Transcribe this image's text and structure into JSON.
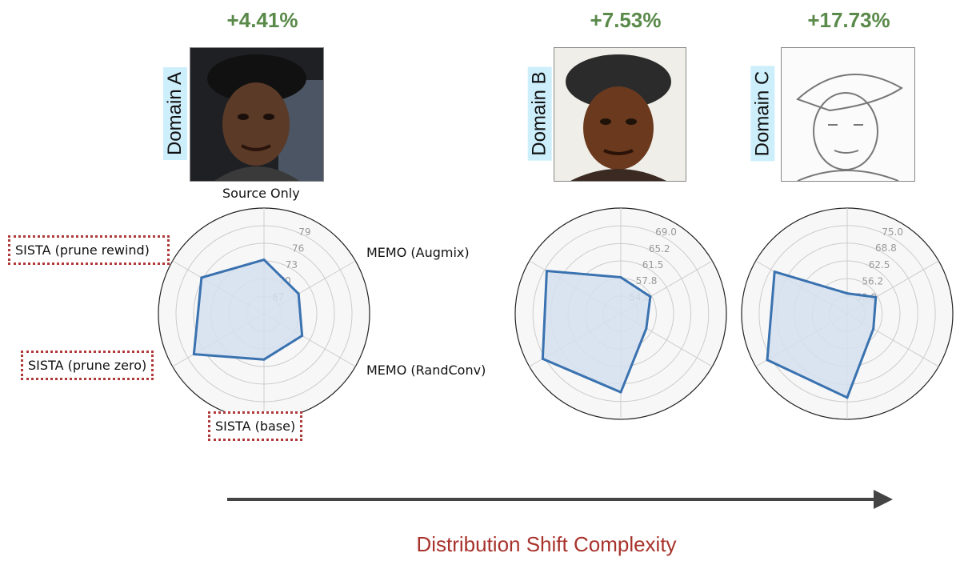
{
  "header": {
    "gains": [
      "+4.41%",
      "+7.53%",
      "+17.73%"
    ]
  },
  "domains": [
    {
      "label": "Domain A",
      "photo_icon": "face-photo-icon"
    },
    {
      "label": "Domain B",
      "photo_icon": "face-photo-icon"
    },
    {
      "label": "Domain C",
      "photo_icon": "face-sketch-icon"
    }
  ],
  "categories": [
    "Source Only",
    "MEMO (Augmix)",
    "MEMO (RandConv)",
    "SISTA (base)",
    "SISTA (prune zero)",
    "SISTA (prune rewind)"
  ],
  "colors": {
    "line": "#3a72b0",
    "fill": "#d5e1ee",
    "grid": "#cccccc",
    "gain": "#5a8a4a",
    "highlight": "#b03a3a",
    "arrow": "#444444",
    "axis_title": "#a8322c"
  },
  "chart_data": [
    {
      "type": "radar",
      "title": "Domain A",
      "categories": [
        "Source Only",
        "MEMO (Augmix)",
        "MEMO (RandConv)",
        "SISTA (base)",
        "SISTA (prune zero)",
        "SISTA (prune rewind)"
      ],
      "ticks": [
        "67",
        "70",
        "73",
        "76",
        "79"
      ],
      "tick_values": [
        67,
        70,
        73,
        76,
        79
      ],
      "range": [
        64,
        82
      ],
      "values": [
        73.2,
        70.8,
        71.5,
        71.8,
        77.8,
        76.3
      ]
    },
    {
      "type": "radar",
      "title": "Domain B",
      "categories": [
        "Source Only",
        "MEMO (Augmix)",
        "MEMO (RandConv)",
        "SISTA (base)",
        "SISTA (prune zero)",
        "SISTA (prune rewind)"
      ],
      "ticks": [
        "54.0",
        "57.8",
        "61.5",
        "65.2",
        "69.0"
      ],
      "tick_values": [
        54.0,
        57.8,
        61.5,
        65.2,
        69.0
      ],
      "range": [
        50.2,
        72.8
      ],
      "values": [
        58.0,
        57.5,
        56.5,
        67.0,
        69.5,
        68.5
      ]
    },
    {
      "type": "radar",
      "title": "Domain C",
      "categories": [
        "Source Only",
        "MEMO (Augmix)",
        "MEMO (RandConv)",
        "SISTA (base)",
        "SISTA (prune zero)",
        "SISTA (prune rewind)"
      ],
      "ticks": [
        "50.0",
        "56.2",
        "62.5",
        "68.8",
        "75.0"
      ],
      "tick_values": [
        50.0,
        56.2,
        62.5,
        68.8,
        75.0
      ],
      "range": [
        43.8,
        81.2
      ],
      "values": [
        51.0,
        55.5,
        54.5,
        73.5,
        76.5,
        73.5
      ]
    }
  ],
  "footer": {
    "axis_title": "Distribution Shift Complexity"
  }
}
